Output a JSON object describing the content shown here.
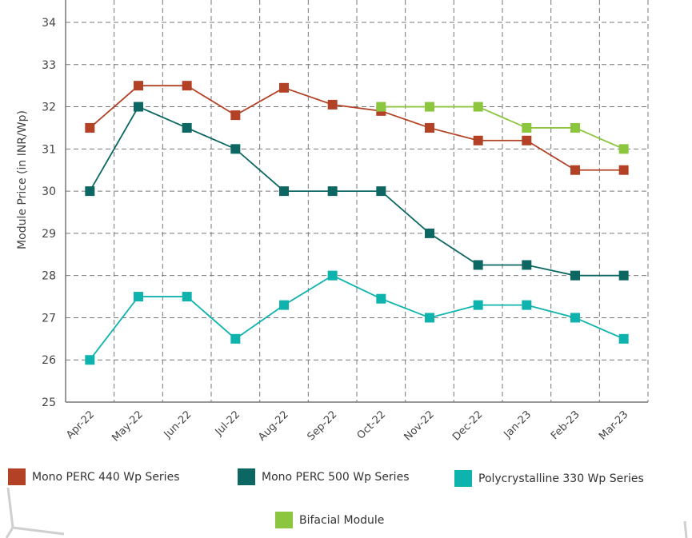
{
  "chart_data": {
    "type": "line",
    "title": "",
    "xlabel": "",
    "ylabel": "Module Price (in INR/Wp)",
    "ylim": [
      25,
      34
    ],
    "yticks": [
      25,
      26,
      27,
      28,
      29,
      30,
      31,
      32,
      33,
      34
    ],
    "grid": true,
    "legend_position": "bottom",
    "categories": [
      "Apr-22",
      "May-22",
      "Jun-22",
      "Jul-22",
      "Aug-22",
      "Sep-22",
      "Oct-22",
      "Nov-22",
      "Dec-22",
      "Jan-23",
      "Feb-23",
      "Mar-23"
    ],
    "series": [
      {
        "name": "Mono PERC 440 Wp Series",
        "color": "#b34126",
        "values": [
          31.5,
          32.5,
          32.5,
          31.8,
          32.45,
          32.05,
          31.9,
          31.5,
          31.2,
          31.2,
          30.5,
          30.5
        ]
      },
      {
        "name": "Mono PERC 500 Wp Series",
        "color": "#0c6762",
        "values": [
          30,
          32,
          31.5,
          31,
          30,
          30,
          30,
          29,
          28.25,
          28.25,
          28,
          28
        ]
      },
      {
        "name": "Polycrystalline 330 Wp Series",
        "color": "#0fb3ae",
        "values": [
          26,
          27.5,
          27.5,
          26.5,
          27.3,
          28,
          27.45,
          27,
          27.3,
          27.3,
          27,
          26.5
        ]
      },
      {
        "name": "Bifacial Module",
        "color": "#8cc63f",
        "values": [
          null,
          null,
          null,
          null,
          null,
          null,
          32,
          32,
          32,
          31.5,
          31.5,
          31
        ]
      }
    ]
  }
}
